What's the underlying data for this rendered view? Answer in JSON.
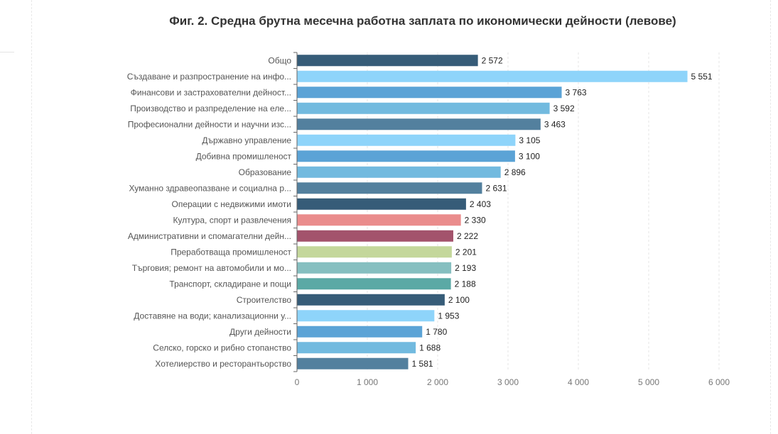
{
  "chart_data": {
    "type": "bar",
    "orientation": "horizontal",
    "title": "Фиг. 2. Средна брутна месечна работна заплата по икономически дейности (левове)",
    "xlabel": "",
    "ylabel": "",
    "xlim": [
      0,
      6000
    ],
    "x_ticks": [
      0,
      1000,
      2000,
      3000,
      4000,
      5000,
      6000
    ],
    "x_tick_labels": [
      "0",
      "1 000",
      "2 000",
      "3 000",
      "4 000",
      "5 000",
      "6 000"
    ],
    "grid": "vertical",
    "bars": [
      {
        "category": "Общо",
        "value": 2572,
        "label": "2 572",
        "color": "#365c78"
      },
      {
        "category": "Създаване и разпространение на инфо...",
        "value": 5551,
        "label": "5 551",
        "color": "#8ed4fa"
      },
      {
        "category": "Финансови и застрахователни дейност...",
        "value": 3763,
        "label": "3 763",
        "color": "#5ba3d6"
      },
      {
        "category": "Производство и разпределение на еле...",
        "value": 3592,
        "label": "3 592",
        "color": "#72badf"
      },
      {
        "category": "Професионални дейности и научни изс...",
        "value": 3463,
        "label": "3 463",
        "color": "#53809e"
      },
      {
        "category": "Държавно управление",
        "value": 3105,
        "label": "3 105",
        "color": "#8ed4fa"
      },
      {
        "category": "Добивна промишленост",
        "value": 3100,
        "label": "3 100",
        "color": "#5ba3d6"
      },
      {
        "category": "Образование",
        "value": 2896,
        "label": "2 896",
        "color": "#72badf"
      },
      {
        "category": "Хуманно здравеопазване и социална р...",
        "value": 2631,
        "label": "2 631",
        "color": "#53809e"
      },
      {
        "category": "Операции с недвижими имоти",
        "value": 2403,
        "label": "2 403",
        "color": "#365c78"
      },
      {
        "category": "Култура, спорт и развлечения",
        "value": 2330,
        "label": "2 330",
        "color": "#ea8c8c"
      },
      {
        "category": "Административни и спомагателни дейн...",
        "value": 2222,
        "label": "2 222",
        "color": "#a3536c"
      },
      {
        "category": "Преработваща промишленост",
        "value": 2201,
        "label": "2 201",
        "color": "#c4d79b"
      },
      {
        "category": "Търговия; ремонт на автомобили и мо...",
        "value": 2193,
        "label": "2 193",
        "color": "#86bfc0"
      },
      {
        "category": "Транспорт, складиране и пощи",
        "value": 2188,
        "label": "2 188",
        "color": "#5ba9a5"
      },
      {
        "category": "Строителство",
        "value": 2100,
        "label": "2 100",
        "color": "#365c78"
      },
      {
        "category": "Доставяне на води; канализационни у...",
        "value": 1953,
        "label": "1 953",
        "color": "#8ed4fa"
      },
      {
        "category": "Други дейности",
        "value": 1780,
        "label": "1 780",
        "color": "#5ba3d6"
      },
      {
        "category": "Селско, горско и рибно стопанство",
        "value": 1688,
        "label": "1 688",
        "color": "#72badf"
      },
      {
        "category": "Хотелиерство и ресторантьорство",
        "value": 1581,
        "label": "1 581",
        "color": "#53809e"
      }
    ]
  }
}
